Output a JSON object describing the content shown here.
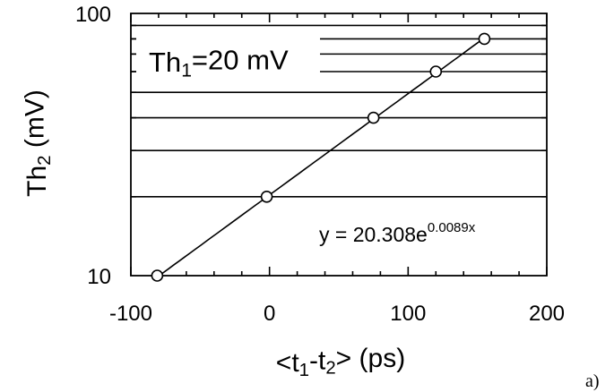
{
  "chart_data": {
    "type": "scatter",
    "xlabel": "<t1-t2>  (ps)",
    "ylabel": "Th2 (mV)",
    "xlim": [
      -100,
      200
    ],
    "ylim": [
      10,
      100
    ],
    "y_scale": "log",
    "x_ticks": [
      -100,
      0,
      100,
      200
    ],
    "y_ticks": [
      10,
      100
    ],
    "x_minor_step": 20,
    "grid": "horizontal lines at y = 20, 30, 40, 50, 60, 70, 80, 90",
    "points": [
      {
        "x": -81,
        "y": 10
      },
      {
        "x": -2,
        "y": 20
      },
      {
        "x": 75,
        "y": 40
      },
      {
        "x": 120,
        "y": 60
      },
      {
        "x": 155,
        "y": 80
      }
    ],
    "fit": {
      "a": 20.308,
      "b": 0.0089
    },
    "annotations": {
      "condition": "Th1=20 mV",
      "equation_base": "y = 20.308e",
      "equation_exponent": "0.0089x"
    },
    "panel_label": "a)"
  }
}
